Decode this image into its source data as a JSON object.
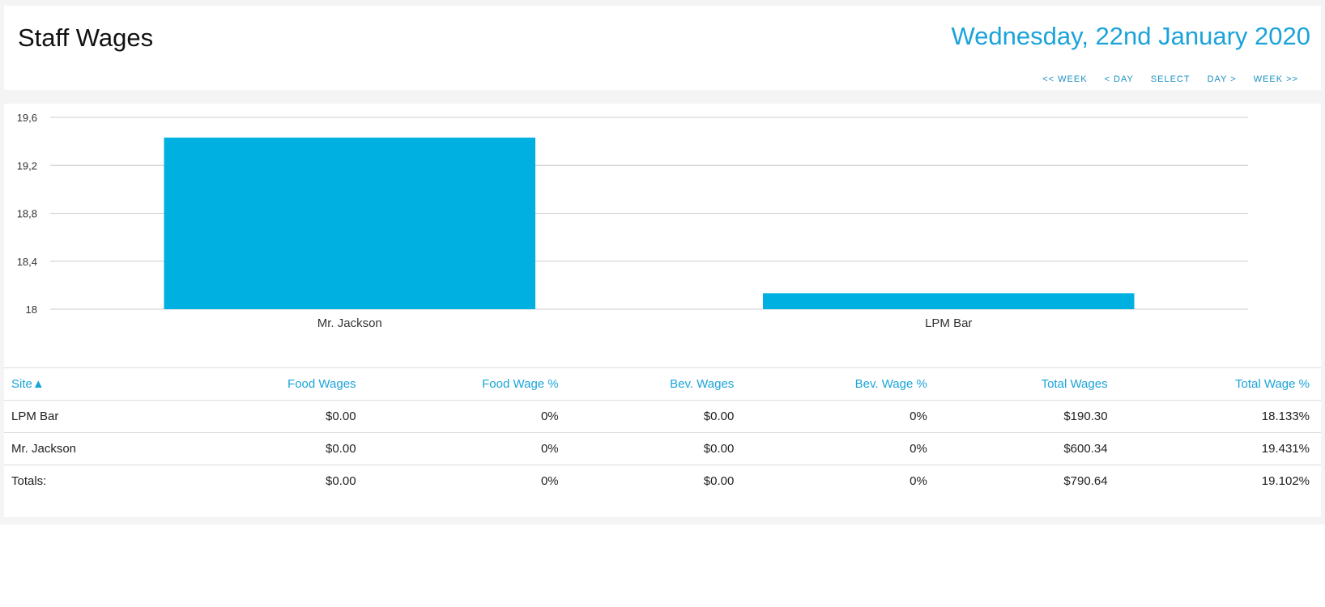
{
  "header": {
    "title": "Staff Wages",
    "date": "Wednesday, 22nd January 2020",
    "nav": {
      "prev_week": "<< WEEK",
      "prev_day": "< DAY",
      "select": "SELECT",
      "next_day": "DAY >",
      "next_week": "WEEK >>"
    }
  },
  "colors": {
    "accent": "#1aa3da",
    "bar": "#00b0e0",
    "grid": "#cccccc"
  },
  "chart_data": {
    "type": "bar",
    "categories": [
      "Mr. Jackson",
      "LPM Bar"
    ],
    "values": [
      19.431,
      18.133
    ],
    "ylim": [
      18,
      19.6
    ],
    "yticks": [
      18,
      18.4,
      18.8,
      19.2,
      19.6
    ],
    "ytick_labels": [
      "18",
      "18,4",
      "18,8",
      "19,2",
      "19,6"
    ],
    "grid": true
  },
  "table": {
    "headers": [
      "Site▲",
      "Food Wages",
      "Food Wage %",
      "Bev. Wages",
      "Bev. Wage %",
      "Total Wages",
      "Total Wage %"
    ],
    "rows": [
      [
        "LPM Bar",
        "$0.00",
        "0%",
        "$0.00",
        "0%",
        "$190.30",
        "18.133%"
      ],
      [
        "Mr. Jackson",
        "$0.00",
        "0%",
        "$0.00",
        "0%",
        "$600.34",
        "19.431%"
      ]
    ],
    "totals": [
      "Totals:",
      "$0.00",
      "0%",
      "$0.00",
      "0%",
      "$790.64",
      "19.102%"
    ]
  }
}
